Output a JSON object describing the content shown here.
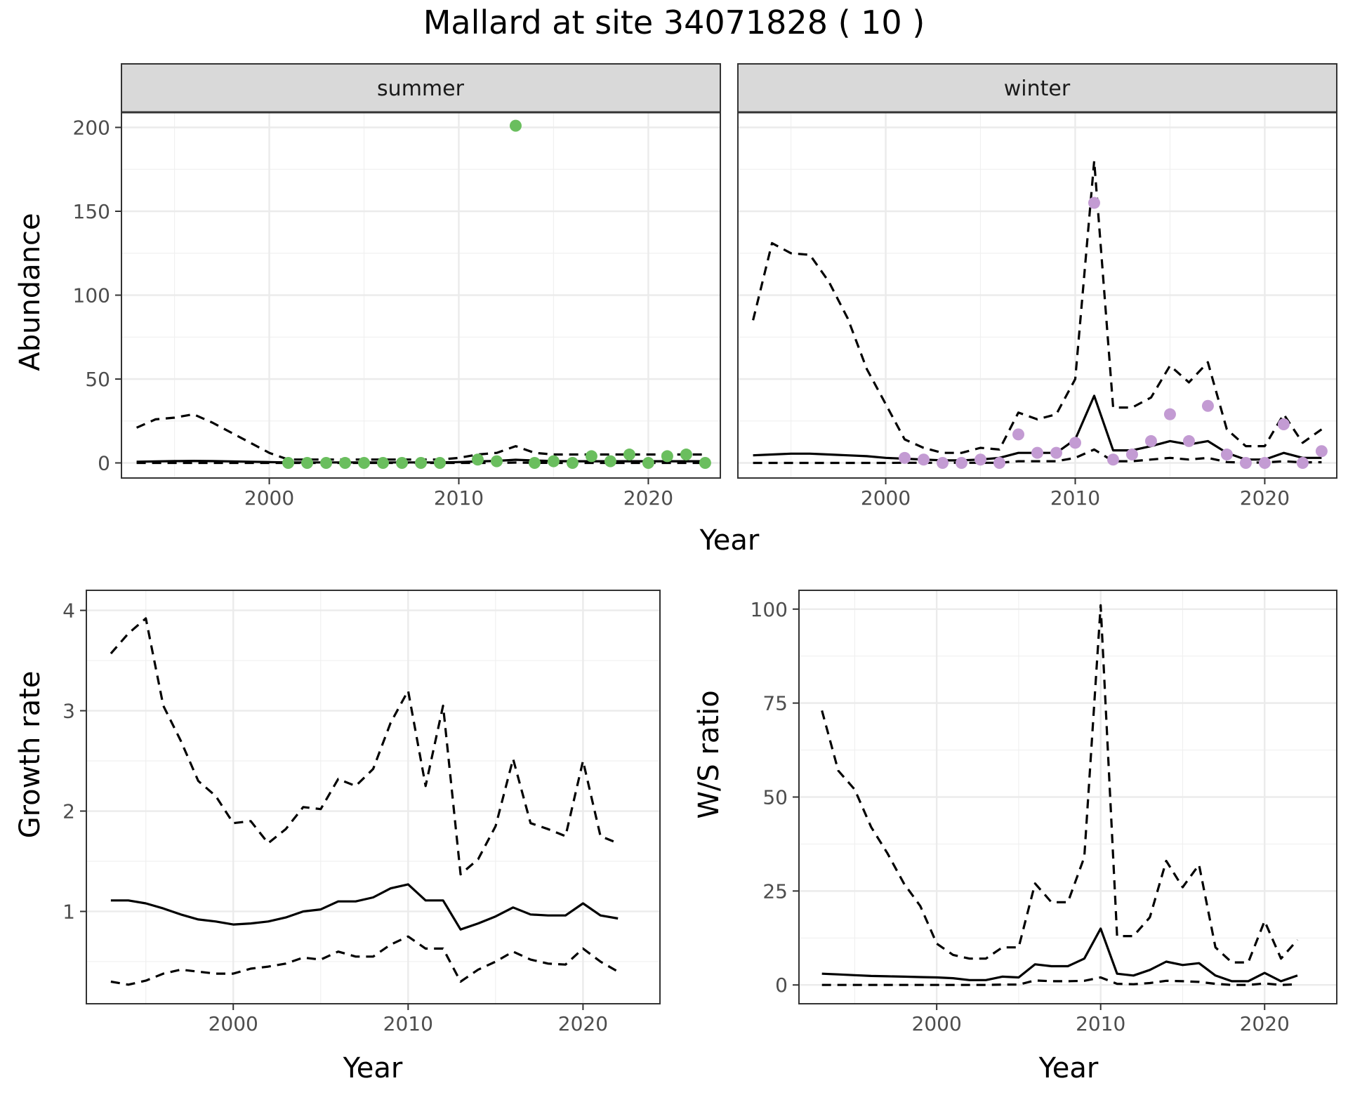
{
  "title": "Mallard at site 34071828 ( 10 )",
  "colors": {
    "summer": "#6ABE5E",
    "winter": "#C39BD3",
    "line": "#000000",
    "strip_fill": "#d9d9d9"
  },
  "chart_data": [
    {
      "id": "summer",
      "type": "line",
      "facet": "summer",
      "xlabel": "Year",
      "ylabel": "Abundance",
      "xlim": [
        1992.2,
        2023.8
      ],
      "ylim": [
        -9,
        209
      ],
      "xticks": [
        2000,
        2010,
        2020
      ],
      "yticks": [
        0,
        50,
        100,
        150,
        200
      ],
      "x": [
        1993,
        1994,
        1995,
        1996,
        1997,
        1998,
        1999,
        2000,
        2001,
        2002,
        2003,
        2004,
        2005,
        2006,
        2007,
        2008,
        2009,
        2010,
        2011,
        2012,
        2013,
        2014,
        2015,
        2016,
        2017,
        2018,
        2019,
        2020,
        2021,
        2022,
        2023
      ],
      "series": [
        {
          "style": "dashed",
          "values": [
            21,
            26,
            27,
            29,
            24,
            18,
            12,
            6,
            2,
            2,
            2,
            2,
            2,
            2,
            2,
            2,
            2,
            3,
            5,
            6,
            10,
            6,
            5,
            5,
            5,
            5,
            5,
            5,
            5,
            5,
            5
          ]
        },
        {
          "style": "solid",
          "values": [
            0.7,
            0.9,
            1.1,
            1.2,
            1.1,
            0.9,
            0.7,
            0.5,
            0.3,
            0.3,
            0.3,
            0.3,
            0.3,
            0.3,
            0.3,
            0.3,
            0.3,
            0.5,
            0.9,
            1.2,
            1.9,
            1.4,
            1.1,
            1,
            1,
            1,
            1,
            1,
            1,
            1,
            1
          ]
        },
        {
          "style": "dashed",
          "values": [
            0,
            0,
            0,
            0,
            0,
            0,
            0,
            0,
            0,
            0,
            0,
            0,
            0,
            0,
            0,
            0,
            0,
            0,
            0,
            0,
            0.2,
            0.1,
            0,
            0,
            0,
            0,
            0,
            0,
            0,
            0,
            0
          ]
        }
      ],
      "points": {
        "x": [
          2001,
          2002,
          2003,
          2004,
          2005,
          2006,
          2007,
          2008,
          2009,
          2011,
          2012,
          2013,
          2014,
          2015,
          2016,
          2017,
          2018,
          2019,
          2020,
          2021,
          2022,
          2023
        ],
        "y": [
          0,
          0,
          0,
          0,
          0,
          0,
          0,
          0,
          0,
          2,
          1,
          201,
          0,
          1,
          0,
          4,
          1,
          5,
          0,
          4,
          5,
          0
        ]
      }
    },
    {
      "id": "winter",
      "type": "line",
      "facet": "winter",
      "xlabel": "Year",
      "ylabel": "Abundance",
      "xlim": [
        1992.2,
        2023.8
      ],
      "ylim": [
        -9,
        209
      ],
      "xticks": [
        2000,
        2010,
        2020
      ],
      "yticks": [
        0,
        50,
        100,
        150,
        200
      ],
      "x": [
        1993,
        1994,
        1995,
        1996,
        1997,
        1998,
        1999,
        2000,
        2001,
        2002,
        2003,
        2004,
        2005,
        2006,
        2007,
        2008,
        2009,
        2010,
        2011,
        2012,
        2013,
        2014,
        2015,
        2016,
        2017,
        2018,
        2019,
        2020,
        2021,
        2022,
        2023
      ],
      "series": [
        {
          "style": "dashed",
          "values": [
            85,
            131,
            125,
            124,
            108,
            86,
            56,
            35,
            14,
            9,
            6,
            6,
            9,
            8,
            30,
            26,
            29,
            50,
            180,
            33,
            33,
            39,
            58,
            48,
            60,
            20,
            10,
            10,
            29,
            12,
            20
          ]
        },
        {
          "style": "solid",
          "values": [
            4.5,
            5,
            5.5,
            5.5,
            5,
            4.5,
            4,
            3,
            2.5,
            2,
            1.5,
            1.5,
            2,
            3,
            6,
            6,
            6,
            14,
            40,
            7.5,
            7.5,
            10,
            13,
            11,
            13,
            6,
            2,
            2,
            6,
            3,
            3
          ]
        },
        {
          "style": "dashed",
          "values": [
            0,
            0,
            0,
            0,
            0,
            0,
            0,
            0,
            0.1,
            0.1,
            0.1,
            0.1,
            0.1,
            0.1,
            1,
            1,
            1,
            3,
            8,
            1,
            1,
            2,
            3,
            2,
            3,
            0.5,
            0.2,
            0.2,
            1,
            0.3,
            0.4
          ]
        }
      ],
      "points": {
        "x": [
          2001,
          2002,
          2003,
          2004,
          2005,
          2006,
          2007,
          2008,
          2009,
          2010,
          2011,
          2012,
          2013,
          2014,
          2015,
          2016,
          2017,
          2018,
          2019,
          2020,
          2021,
          2022,
          2023
        ],
        "y": [
          3,
          2,
          0,
          0,
          2,
          0,
          17,
          6,
          6,
          12,
          155,
          2,
          5,
          13,
          29,
          13,
          34,
          5,
          0,
          0,
          23,
          0,
          7
        ]
      }
    },
    {
      "id": "growth",
      "type": "line",
      "xlabel": "Year",
      "ylabel": "Growth rate",
      "xlim": [
        1991.6,
        2024.4
      ],
      "ylim": [
        0.08,
        4.2
      ],
      "xticks": [
        2000,
        2010,
        2020
      ],
      "yticks": [
        1,
        2,
        3,
        4
      ],
      "x": [
        1993,
        1994,
        1995,
        1996,
        1997,
        1998,
        1999,
        2000,
        2001,
        2002,
        2003,
        2004,
        2005,
        2006,
        2007,
        2008,
        2009,
        2010,
        2011,
        2012,
        2013,
        2014,
        2015,
        2016,
        2017,
        2018,
        2019,
        2020,
        2021,
        2022
      ],
      "series": [
        {
          "style": "dashed",
          "values": [
            3.57,
            3.77,
            3.92,
            3.05,
            2.7,
            2.3,
            2.15,
            1.88,
            1.9,
            1.68,
            1.82,
            2.04,
            2.02,
            2.32,
            2.25,
            2.42,
            2.88,
            3.2,
            2.25,
            3.05,
            1.37,
            1.52,
            1.85,
            2.52,
            1.88,
            1.82,
            1.75,
            2.5,
            1.75,
            1.68
          ]
        },
        {
          "style": "solid",
          "values": [
            1.11,
            1.11,
            1.08,
            1.03,
            0.97,
            0.92,
            0.9,
            0.87,
            0.88,
            0.9,
            0.94,
            1,
            1.02,
            1.1,
            1.1,
            1.14,
            1.23,
            1.27,
            1.11,
            1.11,
            0.82,
            0.88,
            0.95,
            1.04,
            0.97,
            0.96,
            0.96,
            1.08,
            0.96,
            0.93
          ]
        },
        {
          "style": "dashed",
          "values": [
            0.3,
            0.27,
            0.31,
            0.38,
            0.42,
            0.4,
            0.38,
            0.38,
            0.43,
            0.45,
            0.48,
            0.54,
            0.52,
            0.6,
            0.55,
            0.55,
            0.67,
            0.75,
            0.63,
            0.63,
            0.3,
            0.42,
            0.5,
            0.6,
            0.52,
            0.48,
            0.47,
            0.63,
            0.5,
            0.4
          ]
        }
      ]
    },
    {
      "id": "ratio",
      "type": "line",
      "xlabel": "Year",
      "ylabel": "W/S ratio",
      "xlim": [
        1991.6,
        2024.4
      ],
      "ylim": [
        -5,
        105
      ],
      "xticks": [
        2000,
        2010,
        2020
      ],
      "yticks": [
        0,
        25,
        50,
        75,
        100
      ],
      "x": [
        1993,
        1994,
        1995,
        1996,
        1997,
        1998,
        1999,
        2000,
        2001,
        2002,
        2003,
        2004,
        2005,
        2006,
        2007,
        2008,
        2009,
        2010,
        2011,
        2012,
        2013,
        2014,
        2015,
        2016,
        2017,
        2018,
        2019,
        2020,
        2021,
        2022
      ],
      "series": [
        {
          "style": "dashed",
          "values": [
            73,
            57,
            52,
            42,
            35,
            27,
            21,
            11,
            8,
            7,
            7,
            10,
            10,
            27,
            22,
            22,
            34,
            101,
            13,
            13,
            18,
            33,
            26,
            32,
            10,
            6,
            6,
            17,
            7,
            12
          ]
        },
        {
          "style": "solid",
          "values": [
            3,
            2.8,
            2.6,
            2.4,
            2.3,
            2.2,
            2.1,
            2,
            1.8,
            1.3,
            1.3,
            2.2,
            2,
            5.5,
            5,
            5,
            7,
            15,
            3,
            2.5,
            4,
            6.2,
            5.3,
            5.8,
            2.5,
            1,
            1,
            3.2,
            1,
            2.5
          ]
        },
        {
          "style": "dashed",
          "values": [
            0,
            0,
            0,
            0,
            0,
            0,
            0,
            0,
            0,
            0,
            0,
            0.1,
            0.1,
            1.2,
            1,
            1,
            1.1,
            2,
            0.3,
            0.2,
            0.5,
            1.1,
            1,
            0.8,
            0.3,
            0,
            0,
            0.4,
            0,
            0.2
          ]
        }
      ]
    }
  ]
}
